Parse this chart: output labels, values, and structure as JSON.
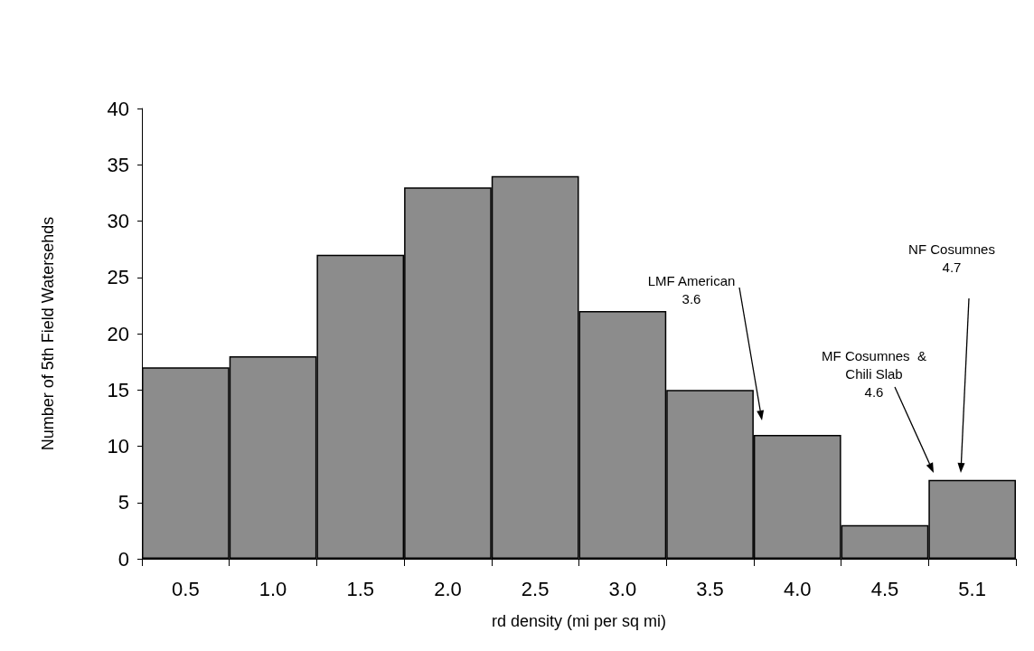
{
  "chart_data": {
    "type": "bar",
    "xlabel": "rd density (mi per sq mi)",
    "ylabel": "Number of 5th Field Watersehds",
    "categories": [
      "0.5",
      "1.0",
      "1.5",
      "2.0",
      "2.5",
      "3.0",
      "3.5",
      "4.0",
      "4.5",
      "5.1"
    ],
    "values": [
      17,
      18,
      27,
      33,
      34,
      22,
      15,
      11,
      3,
      7
    ],
    "color": "#8c8c8c",
    "ylim": [
      0,
      40
    ],
    "yticks": [
      0,
      5,
      10,
      15,
      20,
      25,
      30,
      35,
      40
    ],
    "grid": false,
    "annotations": [
      "LMF American\n3.6",
      "MF Cosumnes  &\nChili Slab\n4.6",
      "NF Cosumnes\n4.7"
    ]
  }
}
